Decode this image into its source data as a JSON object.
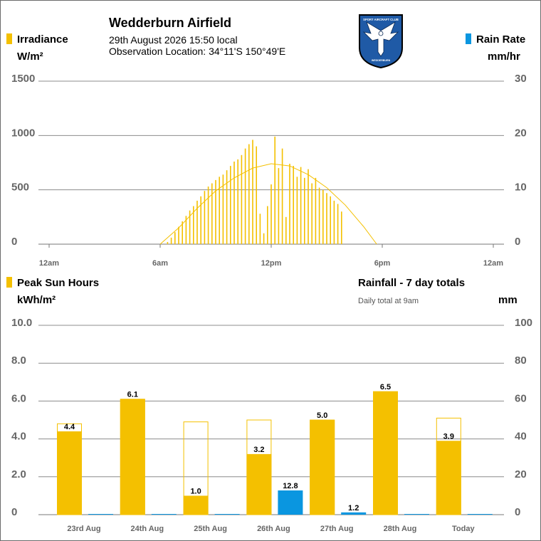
{
  "header": {
    "title": "Wedderburn Airfield",
    "date_line": "29th August 2026  15:50 local",
    "location_line": "Observation Location: 34°11'S 150°49'E",
    "logo_text_top": "SPORT AIRCRAFT CLUB",
    "logo_text_bottom": "WEDDERBURN"
  },
  "colors": {
    "irradiance": "#f4c000",
    "rain": "#0a96e0",
    "grid": "#8c8c8c",
    "axis_text": "#666666",
    "logo_bg": "#1f5aa6"
  },
  "top_chart": {
    "left_title": "Irradiance",
    "left_unit": "W/m²",
    "right_title": "Rain Rate",
    "right_unit": "mm/hr",
    "y_left_ticks": [
      "1500",
      "1000",
      "500",
      "0"
    ],
    "y_right_ticks": [
      "30",
      "20",
      "10",
      "0"
    ],
    "x_ticks": [
      "12am",
      "6am",
      "12pm",
      "6pm",
      "12am"
    ]
  },
  "bottom_chart": {
    "left_title": "Peak Sun Hours",
    "left_unit": "kWh/m²",
    "right_title": "Rainfall - 7 day totals",
    "right_note": "Daily total at 9am",
    "right_unit": "mm",
    "y_left_ticks": [
      "10.0",
      "8.0",
      "6.0",
      "4.0",
      "2.0",
      "0"
    ],
    "y_right_ticks": [
      "100",
      "80",
      "60",
      "40",
      "20",
      "0"
    ]
  },
  "chart_data": [
    {
      "type": "bar",
      "title": "Irradiance",
      "ylabel": "W/m²",
      "y2label": "mm/hr",
      "ylim": [
        0,
        1500
      ],
      "y2lim": [
        0,
        30
      ],
      "xlim_hours": [
        0,
        24
      ],
      "series": [
        {
          "name": "Irradiance",
          "x_hours": [
            6.4,
            6.6,
            6.8,
            7.0,
            7.2,
            7.4,
            7.6,
            7.8,
            8.0,
            8.2,
            8.4,
            8.6,
            8.8,
            9.0,
            9.2,
            9.4,
            9.6,
            9.8,
            10.0,
            10.2,
            10.4,
            10.6,
            10.8,
            11.0,
            11.2,
            11.4,
            11.6,
            11.8,
            12.0,
            12.2,
            12.4,
            12.6,
            12.8,
            13.0,
            13.2,
            13.4,
            13.6,
            13.8,
            14.0,
            14.2,
            14.4,
            14.6,
            14.8,
            15.0,
            15.2,
            15.4,
            15.6,
            15.8
          ],
          "values": [
            20,
            60,
            110,
            160,
            210,
            260,
            310,
            350,
            400,
            440,
            490,
            530,
            560,
            590,
            620,
            640,
            680,
            720,
            760,
            780,
            820,
            880,
            920,
            960,
            900,
            280,
            100,
            350,
            550,
            990,
            700,
            880,
            250,
            740,
            720,
            620,
            710,
            610,
            690,
            560,
            610,
            520,
            500,
            470,
            440,
            400,
            370,
            300
          ]
        },
        {
          "name": "Clear sky",
          "x_hours": [
            6.0,
            7.0,
            8.0,
            9.0,
            10.0,
            11.0,
            12.0,
            13.0,
            14.0,
            15.0,
            16.0,
            17.0,
            17.7
          ],
          "values": [
            0,
            150,
            330,
            490,
            610,
            700,
            740,
            720,
            640,
            520,
            360,
            160,
            0
          ]
        },
        {
          "name": "Rain Rate",
          "x_hours": [],
          "values": []
        }
      ],
      "x_tick_labels": [
        "12am",
        "6am",
        "12pm",
        "6pm",
        "12am"
      ]
    },
    {
      "type": "bar",
      "title": "Peak Sun Hours",
      "ylabel": "kWh/m²",
      "y2label": "mm",
      "ylim": [
        0,
        10
      ],
      "y2lim": [
        0,
        100
      ],
      "categories": [
        "23rd Aug",
        "24th Aug",
        "25th Aug",
        "26th Aug",
        "27th Aug",
        "28th Aug",
        "Today"
      ],
      "series": [
        {
          "name": "Peak Sun Hours",
          "values": [
            4.4,
            6.1,
            1.0,
            3.2,
            5.0,
            6.5,
            3.9
          ],
          "labels": [
            "4.4",
            "6.1",
            "1.0",
            "3.2",
            "5.0",
            "6.5",
            "3.9"
          ]
        },
        {
          "name": "Clear sky potential",
          "values": [
            4.8,
            6.1,
            4.9,
            5.0,
            5.0,
            6.5,
            5.1
          ]
        },
        {
          "name": "Rainfall",
          "values": [
            0,
            0,
            0,
            12.8,
            1.2,
            0,
            0
          ],
          "labels": [
            "",
            "",
            "",
            "12.8",
            "1.2",
            "",
            ""
          ]
        }
      ]
    }
  ]
}
